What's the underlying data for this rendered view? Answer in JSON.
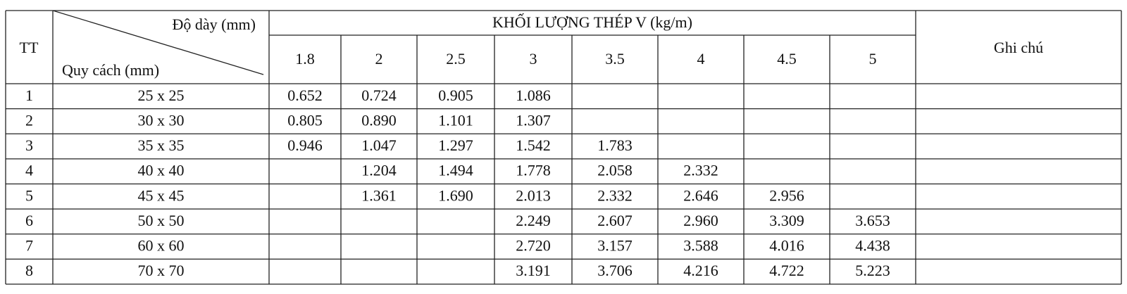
{
  "table": {
    "header": {
      "index": "TT",
      "thickness": "Độ dày (mm)",
      "size": "Quy cách (mm)",
      "group": "KHỐI LƯỢNG THÉP V (kg/m)",
      "thicknesses": [
        "1.8",
        "2",
        "2.5",
        "3",
        "3.5",
        "4",
        "4.5",
        "5"
      ],
      "note": "Ghi chú"
    },
    "rows": [
      {
        "index": "1",
        "size": "25 x 25",
        "weights": [
          "0.652",
          "0.724",
          "0.905",
          "1.086",
          null,
          null,
          null,
          null
        ]
      },
      {
        "index": "2",
        "size": "30 x 30",
        "weights": [
          "0.805",
          "0.890",
          "1.101",
          "1.307",
          null,
          null,
          null,
          null
        ]
      },
      {
        "index": "3",
        "size": "35 x 35",
        "weights": [
          "0.946",
          "1.047",
          "1.297",
          "1.542",
          "1.783",
          null,
          null,
          null
        ]
      },
      {
        "index": "4",
        "size": "40 x 40",
        "weights": [
          null,
          "1.204",
          "1.494",
          "1.778",
          "2.058",
          "2.332",
          null,
          null
        ]
      },
      {
        "index": "5",
        "size": "45 x 45",
        "weights": [
          null,
          "1.361",
          "1.690",
          "2.013",
          "2.332",
          "2.646",
          "2.956",
          null
        ]
      },
      {
        "index": "6",
        "size": "50 x 50",
        "weights": [
          null,
          null,
          null,
          "2.249",
          "2.607",
          "2.960",
          "3.309",
          "3.653"
        ]
      },
      {
        "index": "7",
        "size": "60 x 60",
        "weights": [
          null,
          null,
          null,
          "2.720",
          "3.157",
          "3.588",
          "4.016",
          "4.438"
        ]
      },
      {
        "index": "8",
        "size": "70 x 70",
        "weights": [
          null,
          null,
          null,
          "3.191",
          "3.706",
          "4.216",
          "4.722",
          "5.223"
        ]
      }
    ]
  }
}
